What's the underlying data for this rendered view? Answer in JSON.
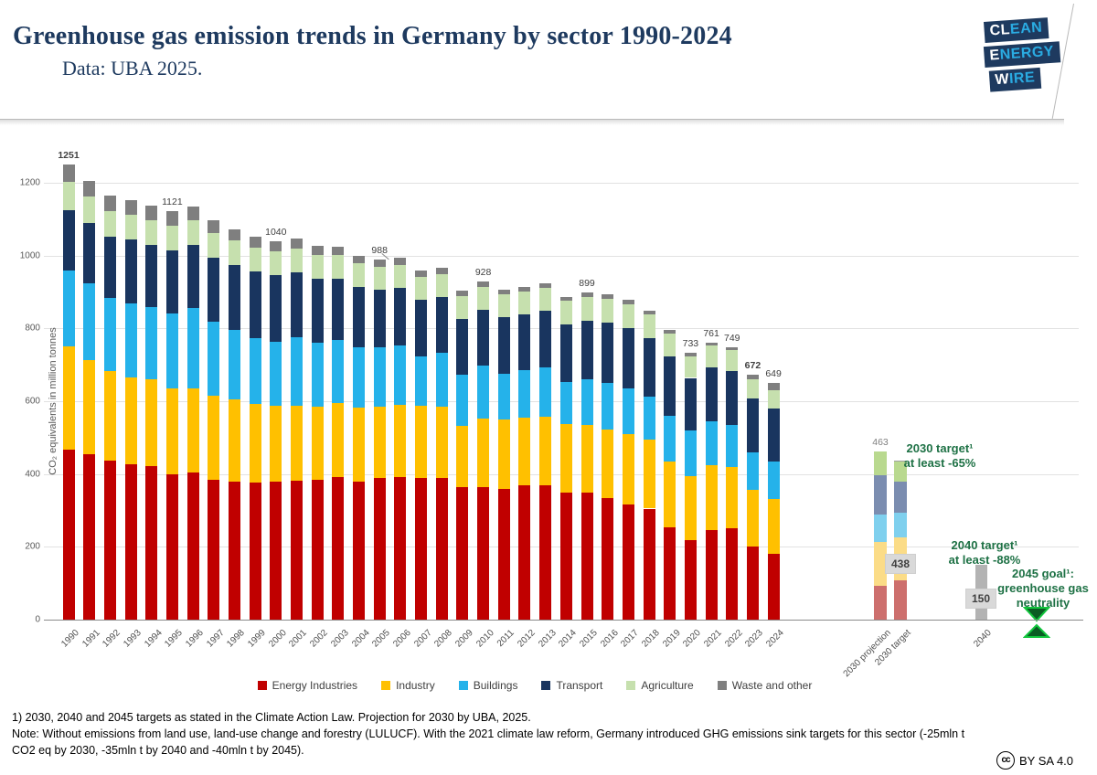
{
  "header": {
    "title": "Greenhouse gas emission trends in Germany by sector 1990-2024",
    "subtitle": "Data: UBA 2025.",
    "logo": {
      "rows": [
        {
          "strong": "CL",
          "rest": "EAN"
        },
        {
          "strong": "E",
          "rest": "NERGY"
        },
        {
          "strong": "W",
          "rest": "IRE"
        }
      ]
    }
  },
  "chart_data": {
    "type": "bar",
    "stacked": true,
    "title": "Greenhouse gas emission trends in Germany by sector 1990-2024",
    "ylabel": "CO₂ equivalents in million tonnes",
    "yticks": [
      0,
      200,
      400,
      600,
      800,
      1000,
      1200
    ],
    "ylim": [
      0,
      1300
    ],
    "grid": true,
    "sectors": [
      "Energy Industries",
      "Industry",
      "Buildings",
      "Transport",
      "Agriculture",
      "Waste and other"
    ],
    "sector_colors": [
      "#c00000",
      "#ffc000",
      "#25b2ea",
      "#19355f",
      "#c6e0ae",
      "#7f7f7f"
    ],
    "muted_colors": [
      "#cd6f6d",
      "#fbdc87",
      "#7fd0ee",
      "#7b8db0",
      "#b9d98f",
      "#a0a0a0"
    ],
    "years": [
      {
        "year": "1990",
        "values": [
          466,
          284,
          210,
          164,
          79,
          48
        ],
        "total": 1251,
        "label": "1251",
        "bold": true
      },
      {
        "year": "1991",
        "values": [
          455,
          257,
          211,
          166,
          73,
          44
        ],
        "total": 1206
      },
      {
        "year": "1992",
        "values": [
          437,
          247,
          199,
          170,
          69,
          43
        ],
        "total": 1165
      },
      {
        "year": "1993",
        "values": [
          427,
          238,
          204,
          175,
          68,
          41
        ],
        "total": 1153
      },
      {
        "year": "1994",
        "values": [
          421,
          240,
          197,
          172,
          67,
          39
        ],
        "total": 1136
      },
      {
        "year": "1995",
        "values": [
          400,
          236,
          205,
          173,
          68,
          39
        ],
        "total": 1121,
        "label": "1121"
      },
      {
        "year": "1996",
        "values": [
          403,
          233,
          221,
          172,
          68,
          37
        ],
        "total": 1134
      },
      {
        "year": "1997",
        "values": [
          384,
          232,
          203,
          174,
          68,
          35
        ],
        "total": 1096
      },
      {
        "year": "1998",
        "values": [
          380,
          225,
          192,
          177,
          67,
          32
        ],
        "total": 1073
      },
      {
        "year": "1999",
        "values": [
          376,
          217,
          179,
          184,
          66,
          29
        ],
        "total": 1051
      },
      {
        "year": "2000",
        "values": [
          378,
          210,
          176,
          182,
          66,
          28
        ],
        "total": 1040,
        "label": "1040"
      },
      {
        "year": "2001",
        "values": [
          382,
          206,
          187,
          178,
          66,
          27
        ],
        "total": 1046
      },
      {
        "year": "2002",
        "values": [
          383,
          202,
          175,
          176,
          65,
          25
        ],
        "total": 1026
      },
      {
        "year": "2003",
        "values": [
          392,
          203,
          172,
          170,
          64,
          23
        ],
        "total": 1024
      },
      {
        "year": "2004",
        "values": [
          380,
          202,
          165,
          168,
          63,
          21
        ],
        "total": 999
      },
      {
        "year": "2005",
        "values": [
          388,
          198,
          161,
          160,
          62,
          19
        ],
        "total": 988,
        "label": "988",
        "leader": true
      },
      {
        "year": "2006",
        "values": [
          392,
          199,
          162,
          159,
          62,
          19
        ],
        "total": 993
      },
      {
        "year": "2007",
        "values": [
          390,
          198,
          134,
          157,
          63,
          18
        ],
        "total": 960
      },
      {
        "year": "2008",
        "values": [
          388,
          196,
          148,
          154,
          64,
          17
        ],
        "total": 967
      },
      {
        "year": "2009",
        "values": [
          365,
          167,
          140,
          153,
          63,
          16
        ],
        "total": 904
      },
      {
        "year": "2010",
        "values": [
          365,
          187,
          146,
          153,
          63,
          14
        ],
        "total": 928,
        "label": "928"
      },
      {
        "year": "2011",
        "values": [
          360,
          189,
          127,
          154,
          63,
          14
        ],
        "total": 907
      },
      {
        "year": "2012",
        "values": [
          370,
          185,
          131,
          152,
          63,
          13
        ],
        "total": 914
      },
      {
        "year": "2013",
        "values": [
          370,
          187,
          136,
          155,
          64,
          13
        ],
        "total": 925
      },
      {
        "year": "2014",
        "values": [
          350,
          186,
          117,
          157,
          65,
          12
        ],
        "total": 887
      },
      {
        "year": "2015",
        "values": [
          348,
          187,
          125,
          161,
          66,
          12
        ],
        "total": 899,
        "label": "899"
      },
      {
        "year": "2016",
        "values": [
          334,
          189,
          128,
          165,
          66,
          11
        ],
        "total": 893
      },
      {
        "year": "2017",
        "values": [
          316,
          193,
          125,
          168,
          65,
          11
        ],
        "total": 878
      },
      {
        "year": "2018",
        "values": [
          305,
          190,
          117,
          162,
          64,
          10
        ],
        "total": 848
      },
      {
        "year": "2019",
        "values": [
          254,
          180,
          127,
          163,
          61,
          10
        ],
        "total": 795
      },
      {
        "year": "2020",
        "values": [
          218,
          177,
          124,
          145,
          60,
          9
        ],
        "total": 733,
        "label": "733"
      },
      {
        "year": "2021",
        "values": [
          246,
          178,
          121,
          147,
          60,
          9
        ],
        "total": 761,
        "label": "761"
      },
      {
        "year": "2022",
        "values": [
          252,
          166,
          117,
          148,
          57,
          9
        ],
        "total": 749,
        "label": "749"
      },
      {
        "year": "2023",
        "values": [
          202,
          155,
          103,
          147,
          53,
          12
        ],
        "total": 672,
        "label": "672",
        "bold": true
      },
      {
        "year": "2024",
        "values": [
          180,
          152,
          103,
          144,
          52,
          18
        ],
        "total": 649,
        "label": "649"
      }
    ],
    "special_bars": [
      {
        "id": "projection2030",
        "axis_label": "2030 projection",
        "values": [
          92,
          121,
          76,
          108,
          66,
          0
        ],
        "total": 463,
        "top_label": "463",
        "palette": "muted"
      },
      {
        "id": "target2030",
        "axis_label": "2030 target",
        "values": [
          108,
          118,
          67,
          85,
          56,
          4
        ],
        "total": 438,
        "callout": "438",
        "palette": "muted"
      },
      {
        "id": "target2040",
        "axis_label": "2040",
        "values_gray": 150,
        "total": 150,
        "callout": "150",
        "color": "#b3b3b3"
      }
    ],
    "annotations": [
      {
        "id": "note2030",
        "lines": [
          "2030 target¹",
          "at least -65%"
        ]
      },
      {
        "id": "note2040",
        "lines": [
          "2040 target¹",
          "at least -88%"
        ]
      },
      {
        "id": "note2045",
        "lines": [
          "2045 goal¹:",
          "greenhouse gas",
          "neutrality"
        ]
      }
    ],
    "goal_marker_color_fill": "#0a5c23",
    "goal_marker_color_edge": "#12c63d",
    "annotation_color": "#1e7145"
  },
  "legend": {
    "items": [
      {
        "label": "Energy Industries",
        "color": "#c00000"
      },
      {
        "label": "Industry",
        "color": "#ffc000"
      },
      {
        "label": "Buildings",
        "color": "#25b2ea"
      },
      {
        "label": "Transport",
        "color": "#19355f"
      },
      {
        "label": "Agriculture",
        "color": "#c6e0ae"
      },
      {
        "label": "Waste and other",
        "color": "#7f7f7f"
      }
    ]
  },
  "footnotes": {
    "lines": [
      "1) 2030, 2040 and 2045 targets as stated in the Climate Action Law. Projection for 2030 by UBA, 2025.",
      "Note: Without emissions from land use, land-use change and forestry (LULUCF). With the 2021 climate law reform, Germany introduced GHG emissions sink targets for this sector (-25mln t",
      "CO2 eq by 2030, -35mln t by 2040 and -40mln t by 2045)."
    ]
  },
  "license": {
    "icon": "cc",
    "text": "BY SA 4.0"
  }
}
